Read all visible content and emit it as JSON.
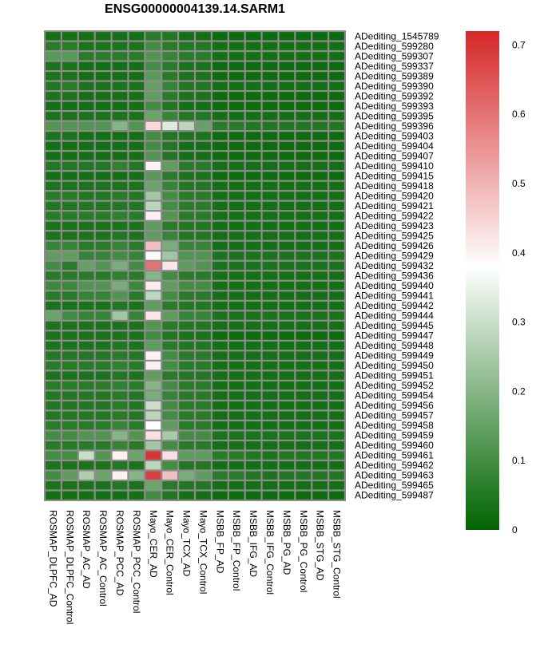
{
  "chart_data": {
    "type": "heatmap",
    "title": "ENSG00000004139.14.SARM1",
    "columns": [
      "ROSMAP_DLPFC_AD",
      "ROSMAP_DLPFC_Control",
      "ROSMAP_AC_AD",
      "ROSMAP_AC_Control",
      "ROSMAP_PCC_AD",
      "ROSMAP_PCC_Control",
      "Mayo_CER_AD",
      "Mayo_CER_Control",
      "Mayo_TCX_AD",
      "Mayo_TCX_Control",
      "MSBB_FP_AD",
      "MSBB_FP_Control",
      "MSBB_IFG_AD",
      "MSBB_IFG_Control",
      "MSBB_PG_AD",
      "MSBB_PG_Control",
      "MSBB_STG_AD",
      "MSBB_STG_Control"
    ],
    "rows": [
      "ADediting_1545789",
      "ADediting_599280",
      "ADediting_599307",
      "ADediting_599337",
      "ADediting_599389",
      "ADediting_599390",
      "ADediting_599392",
      "ADediting_599393",
      "ADediting_599395",
      "ADediting_599396",
      "ADediting_599403",
      "ADediting_599404",
      "ADediting_599407",
      "ADediting_599410",
      "ADediting_599415",
      "ADediting_599418",
      "ADediting_599420",
      "ADediting_599421",
      "ADediting_599422",
      "ADediting_599423",
      "ADediting_599425",
      "ADediting_599426",
      "ADediting_599429",
      "ADediting_599432",
      "ADediting_599436",
      "ADediting_599440",
      "ADediting_599441",
      "ADediting_599442",
      "ADediting_599444",
      "ADediting_599445",
      "ADediting_599447",
      "ADediting_599448",
      "ADediting_599449",
      "ADediting_599450",
      "ADediting_599451",
      "ADediting_599452",
      "ADediting_599454",
      "ADediting_599456",
      "ADediting_599457",
      "ADediting_599458",
      "ADediting_599459",
      "ADediting_599460",
      "ADediting_599461",
      "ADediting_599462",
      "ADediting_599463",
      "ADediting_599465",
      "ADediting_599487"
    ],
    "values": [
      [
        0.03,
        0.03,
        0.03,
        0.03,
        0.03,
        0.03,
        0.06,
        0.05,
        0.03,
        0.03,
        0.02,
        0.02,
        0.02,
        0.02,
        0.02,
        0.02,
        0.02,
        0.02
      ],
      [
        0.06,
        0.06,
        0.04,
        0.04,
        0.04,
        0.04,
        0.1,
        0.06,
        0.05,
        0.05,
        0.03,
        0.03,
        0.03,
        0.03,
        0.03,
        0.03,
        0.03,
        0.03
      ],
      [
        0.13,
        0.13,
        0.06,
        0.06,
        0.06,
        0.06,
        0.12,
        0.08,
        0.06,
        0.06,
        0.03,
        0.03,
        0.03,
        0.03,
        0.03,
        0.03,
        0.03,
        0.03
      ],
      [
        0.04,
        0.04,
        0.03,
        0.03,
        0.03,
        0.03,
        0.1,
        0.06,
        0.04,
        0.04,
        0.02,
        0.02,
        0.02,
        0.02,
        0.02,
        0.02,
        0.02,
        0.02
      ],
      [
        0.04,
        0.04,
        0.03,
        0.03,
        0.03,
        0.03,
        0.13,
        0.06,
        0.04,
        0.04,
        0.02,
        0.02,
        0.02,
        0.02,
        0.02,
        0.02,
        0.02,
        0.02
      ],
      [
        0.05,
        0.06,
        0.04,
        0.04,
        0.04,
        0.04,
        0.15,
        0.08,
        0.05,
        0.05,
        0.03,
        0.03,
        0.03,
        0.03,
        0.03,
        0.03,
        0.03,
        0.03
      ],
      [
        0.04,
        0.04,
        0.03,
        0.03,
        0.03,
        0.03,
        0.14,
        0.06,
        0.04,
        0.04,
        0.02,
        0.02,
        0.02,
        0.02,
        0.02,
        0.02,
        0.02,
        0.02
      ],
      [
        0.03,
        0.03,
        0.03,
        0.03,
        0.03,
        0.03,
        0.1,
        0.05,
        0.03,
        0.03,
        0.02,
        0.02,
        0.02,
        0.02,
        0.02,
        0.02,
        0.02,
        0.02
      ],
      [
        0.04,
        0.04,
        0.04,
        0.04,
        0.04,
        0.04,
        0.16,
        0.08,
        0.05,
        0.05,
        0.03,
        0.03,
        0.03,
        0.03,
        0.03,
        0.03,
        0.03,
        0.03
      ],
      [
        0.12,
        0.12,
        0.12,
        0.12,
        0.2,
        0.12,
        0.44,
        0.33,
        0.28,
        0.15,
        0.06,
        0.06,
        0.05,
        0.05,
        0.05,
        0.05,
        0.05,
        0.05
      ],
      [
        0.04,
        0.04,
        0.03,
        0.03,
        0.03,
        0.03,
        0.1,
        0.05,
        0.04,
        0.04,
        0.02,
        0.02,
        0.02,
        0.02,
        0.02,
        0.02,
        0.02,
        0.02
      ],
      [
        0.03,
        0.03,
        0.03,
        0.03,
        0.03,
        0.03,
        0.1,
        0.05,
        0.03,
        0.03,
        0.02,
        0.02,
        0.02,
        0.02,
        0.02,
        0.02,
        0.02,
        0.02
      ],
      [
        0.03,
        0.03,
        0.03,
        0.03,
        0.03,
        0.03,
        0.12,
        0.05,
        0.03,
        0.03,
        0.02,
        0.02,
        0.02,
        0.02,
        0.02,
        0.02,
        0.02,
        0.02
      ],
      [
        0.05,
        0.05,
        0.05,
        0.05,
        0.07,
        0.05,
        0.4,
        0.14,
        0.06,
        0.06,
        0.03,
        0.03,
        0.03,
        0.03,
        0.03,
        0.03,
        0.03,
        0.03
      ],
      [
        0.03,
        0.03,
        0.03,
        0.03,
        0.03,
        0.03,
        0.13,
        0.06,
        0.04,
        0.04,
        0.02,
        0.02,
        0.02,
        0.02,
        0.02,
        0.02,
        0.02,
        0.02
      ],
      [
        0.04,
        0.04,
        0.04,
        0.04,
        0.04,
        0.04,
        0.16,
        0.08,
        0.05,
        0.05,
        0.03,
        0.03,
        0.03,
        0.03,
        0.03,
        0.03,
        0.03,
        0.03
      ],
      [
        0.06,
        0.06,
        0.05,
        0.05,
        0.06,
        0.05,
        0.24,
        0.1,
        0.06,
        0.06,
        0.03,
        0.03,
        0.03,
        0.03,
        0.03,
        0.03,
        0.03,
        0.03
      ],
      [
        0.05,
        0.05,
        0.05,
        0.05,
        0.05,
        0.05,
        0.28,
        0.1,
        0.06,
        0.06,
        0.03,
        0.03,
        0.03,
        0.03,
        0.03,
        0.03,
        0.03,
        0.03
      ],
      [
        0.06,
        0.06,
        0.06,
        0.06,
        0.07,
        0.06,
        0.4,
        0.12,
        0.06,
        0.06,
        0.03,
        0.03,
        0.03,
        0.03,
        0.03,
        0.03,
        0.03,
        0.03
      ],
      [
        0.04,
        0.04,
        0.04,
        0.04,
        0.04,
        0.04,
        0.14,
        0.06,
        0.05,
        0.05,
        0.03,
        0.03,
        0.03,
        0.03,
        0.03,
        0.03,
        0.03,
        0.03
      ],
      [
        0.04,
        0.04,
        0.04,
        0.04,
        0.05,
        0.04,
        0.14,
        0.08,
        0.05,
        0.05,
        0.03,
        0.03,
        0.03,
        0.03,
        0.03,
        0.03,
        0.03,
        0.03
      ],
      [
        0.08,
        0.08,
        0.06,
        0.06,
        0.08,
        0.06,
        0.48,
        0.18,
        0.08,
        0.08,
        0.03,
        0.03,
        0.03,
        0.03,
        0.03,
        0.03,
        0.03,
        0.03
      ],
      [
        0.14,
        0.14,
        0.08,
        0.08,
        0.1,
        0.08,
        0.39,
        0.24,
        0.12,
        0.12,
        0.04,
        0.04,
        0.04,
        0.04,
        0.04,
        0.04,
        0.04,
        0.04
      ],
      [
        0.1,
        0.06,
        0.15,
        0.12,
        0.18,
        0.1,
        0.6,
        0.42,
        0.14,
        0.12,
        0.04,
        0.04,
        0.04,
        0.04,
        0.04,
        0.04,
        0.04,
        0.04
      ],
      [
        0.06,
        0.06,
        0.06,
        0.06,
        0.07,
        0.06,
        0.2,
        0.1,
        0.06,
        0.06,
        0.03,
        0.03,
        0.03,
        0.03,
        0.03,
        0.03,
        0.03,
        0.03
      ],
      [
        0.09,
        0.09,
        0.12,
        0.12,
        0.18,
        0.09,
        0.41,
        0.14,
        0.1,
        0.1,
        0.03,
        0.03,
        0.03,
        0.03,
        0.03,
        0.03,
        0.03,
        0.03
      ],
      [
        0.06,
        0.06,
        0.08,
        0.08,
        0.12,
        0.06,
        0.28,
        0.1,
        0.06,
        0.06,
        0.03,
        0.03,
        0.03,
        0.03,
        0.03,
        0.03,
        0.03,
        0.03
      ],
      [
        0.04,
        0.04,
        0.04,
        0.04,
        0.05,
        0.04,
        0.14,
        0.06,
        0.05,
        0.05,
        0.03,
        0.03,
        0.03,
        0.03,
        0.03,
        0.03,
        0.03,
        0.03
      ],
      [
        0.16,
        0.1,
        0.08,
        0.08,
        0.24,
        0.08,
        0.42,
        0.14,
        0.08,
        0.08,
        0.04,
        0.04,
        0.04,
        0.04,
        0.04,
        0.04,
        0.04,
        0.04
      ],
      [
        0.04,
        0.04,
        0.04,
        0.04,
        0.04,
        0.04,
        0.12,
        0.06,
        0.05,
        0.05,
        0.03,
        0.03,
        0.03,
        0.03,
        0.03,
        0.03,
        0.03,
        0.03
      ],
      [
        0.04,
        0.04,
        0.04,
        0.04,
        0.04,
        0.04,
        0.1,
        0.05,
        0.04,
        0.04,
        0.02,
        0.02,
        0.02,
        0.02,
        0.02,
        0.02,
        0.02,
        0.02
      ],
      [
        0.04,
        0.04,
        0.04,
        0.04,
        0.05,
        0.04,
        0.14,
        0.06,
        0.05,
        0.05,
        0.03,
        0.03,
        0.03,
        0.03,
        0.03,
        0.03,
        0.03,
        0.03
      ],
      [
        0.05,
        0.05,
        0.05,
        0.05,
        0.06,
        0.05,
        0.4,
        0.1,
        0.06,
        0.06,
        0.03,
        0.03,
        0.03,
        0.03,
        0.03,
        0.03,
        0.03,
        0.03
      ],
      [
        0.06,
        0.06,
        0.06,
        0.06,
        0.07,
        0.06,
        0.4,
        0.1,
        0.06,
        0.06,
        0.03,
        0.03,
        0.03,
        0.03,
        0.03,
        0.03,
        0.03,
        0.03
      ],
      [
        0.04,
        0.04,
        0.04,
        0.04,
        0.05,
        0.04,
        0.14,
        0.06,
        0.05,
        0.05,
        0.03,
        0.03,
        0.03,
        0.03,
        0.03,
        0.03,
        0.03,
        0.03
      ],
      [
        0.06,
        0.06,
        0.06,
        0.06,
        0.07,
        0.06,
        0.2,
        0.1,
        0.06,
        0.06,
        0.03,
        0.03,
        0.03,
        0.03,
        0.03,
        0.03,
        0.03,
        0.03
      ],
      [
        0.05,
        0.05,
        0.05,
        0.05,
        0.06,
        0.05,
        0.18,
        0.08,
        0.06,
        0.06,
        0.03,
        0.03,
        0.03,
        0.03,
        0.03,
        0.03,
        0.03,
        0.03
      ],
      [
        0.05,
        0.05,
        0.05,
        0.05,
        0.06,
        0.05,
        0.3,
        0.1,
        0.06,
        0.06,
        0.03,
        0.03,
        0.03,
        0.03,
        0.03,
        0.03,
        0.03,
        0.03
      ],
      [
        0.05,
        0.05,
        0.05,
        0.05,
        0.06,
        0.05,
        0.28,
        0.1,
        0.06,
        0.06,
        0.03,
        0.03,
        0.03,
        0.03,
        0.03,
        0.03,
        0.03,
        0.03
      ],
      [
        0.06,
        0.06,
        0.06,
        0.06,
        0.08,
        0.06,
        0.38,
        0.14,
        0.06,
        0.06,
        0.03,
        0.03,
        0.03,
        0.03,
        0.03,
        0.03,
        0.03,
        0.03
      ],
      [
        0.1,
        0.1,
        0.12,
        0.12,
        0.2,
        0.12,
        0.43,
        0.25,
        0.1,
        0.1,
        0.04,
        0.04,
        0.04,
        0.04,
        0.04,
        0.04,
        0.04,
        0.04
      ],
      [
        0.06,
        0.06,
        0.06,
        0.06,
        0.08,
        0.06,
        0.24,
        0.1,
        0.06,
        0.06,
        0.03,
        0.03,
        0.03,
        0.03,
        0.03,
        0.03,
        0.03,
        0.03
      ],
      [
        0.1,
        0.1,
        0.3,
        0.12,
        0.4,
        0.16,
        0.7,
        0.43,
        0.14,
        0.14,
        0.06,
        0.06,
        0.05,
        0.04,
        0.05,
        0.05,
        0.05,
        0.05
      ],
      [
        0.04,
        0.04,
        0.04,
        0.04,
        0.05,
        0.04,
        0.28,
        0.1,
        0.05,
        0.05,
        0.03,
        0.03,
        0.03,
        0.03,
        0.03,
        0.03,
        0.03,
        0.03
      ],
      [
        0.1,
        0.14,
        0.26,
        0.16,
        0.4,
        0.2,
        0.68,
        0.48,
        0.18,
        0.14,
        0.06,
        0.06,
        0.05,
        0.04,
        0.05,
        0.05,
        0.05,
        0.05
      ],
      [
        0.04,
        0.04,
        0.04,
        0.04,
        0.05,
        0.04,
        0.16,
        0.06,
        0.05,
        0.05,
        0.03,
        0.03,
        0.03,
        0.03,
        0.03,
        0.03,
        0.03,
        0.03
      ],
      [
        0.03,
        0.03,
        0.03,
        0.03,
        0.03,
        0.03,
        0.1,
        0.05,
        0.03,
        0.03,
        0.02,
        0.02,
        0.02,
        0.02,
        0.02,
        0.02,
        0.02,
        0.02
      ]
    ],
    "colorbar": {
      "range": [
        0,
        0.72
      ],
      "ticks": [
        0,
        0.1,
        0.2,
        0.3,
        0.4,
        0.5,
        0.6,
        0.7
      ],
      "tick_labels": [
        "0",
        "0.1",
        "0.2",
        "0.3",
        "0.4",
        "0.5",
        "0.6",
        "0.7"
      ],
      "colors": [
        "#006400",
        "#ffffff",
        "#d62728"
      ],
      "mid_value": 0.38
    },
    "cell_border_color": "#8c8c8c"
  }
}
